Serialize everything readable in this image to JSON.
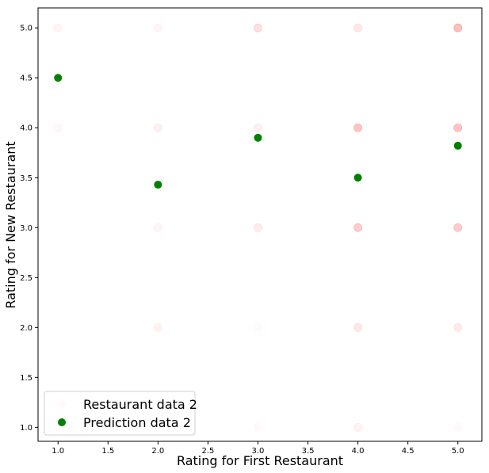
{
  "chart_data": {
    "type": "scatter",
    "title": "",
    "xlabel": "Rating for First Restaurant",
    "ylabel": "Rating for New Restaurant",
    "xlim": [
      0.8,
      5.24
    ],
    "ylim": [
      0.86,
      5.2
    ],
    "xticks": [
      "1.0",
      "1.5",
      "2.0",
      "2.5",
      "3.0",
      "3.5",
      "4.0",
      "4.5",
      "5.0"
    ],
    "yticks": [
      "1.0",
      "1.5",
      "2.0",
      "2.5",
      "3.0",
      "3.5",
      "4.0",
      "4.5",
      "5.0"
    ],
    "grid": false,
    "legend_position": "lower-left",
    "series": [
      {
        "name": "Restaurant data 2",
        "color": "#ff8080",
        "points": [
          {
            "x": 1,
            "y": 5,
            "alpha": 0.08
          },
          {
            "x": 1,
            "y": 4,
            "alpha": 0.06
          },
          {
            "x": 2,
            "y": 5,
            "alpha": 0.08
          },
          {
            "x": 2,
            "y": 4,
            "alpha": 0.12
          },
          {
            "x": 2,
            "y": 3,
            "alpha": 0.08
          },
          {
            "x": 2,
            "y": 2,
            "alpha": 0.1
          },
          {
            "x": 3,
            "y": 5,
            "alpha": 0.25
          },
          {
            "x": 3,
            "y": 4,
            "alpha": 0.12
          },
          {
            "x": 3,
            "y": 3,
            "alpha": 0.15
          },
          {
            "x": 3,
            "y": 2,
            "alpha": 0.04
          },
          {
            "x": 3,
            "y": 1,
            "alpha": 0.04
          },
          {
            "x": 4,
            "y": 5,
            "alpha": 0.18
          },
          {
            "x": 4,
            "y": 4,
            "alpha": 0.45
          },
          {
            "x": 4,
            "y": 3,
            "alpha": 0.4
          },
          {
            "x": 4,
            "y": 2,
            "alpha": 0.18
          },
          {
            "x": 4,
            "y": 1,
            "alpha": 0.1
          },
          {
            "x": 5,
            "y": 5,
            "alpha": 0.5
          },
          {
            "x": 5,
            "y": 4,
            "alpha": 0.45
          },
          {
            "x": 5,
            "y": 3,
            "alpha": 0.4
          },
          {
            "x": 5,
            "y": 2,
            "alpha": 0.15
          },
          {
            "x": 5,
            "y": 1,
            "alpha": 0.04
          }
        ]
      },
      {
        "name": "Prediction data 2",
        "color": "#008000",
        "points": [
          {
            "x": 1,
            "y": 4.5
          },
          {
            "x": 2,
            "y": 3.43
          },
          {
            "x": 3,
            "y": 3.9
          },
          {
            "x": 4,
            "y": 3.5
          },
          {
            "x": 5,
            "y": 3.82
          }
        ]
      }
    ]
  }
}
